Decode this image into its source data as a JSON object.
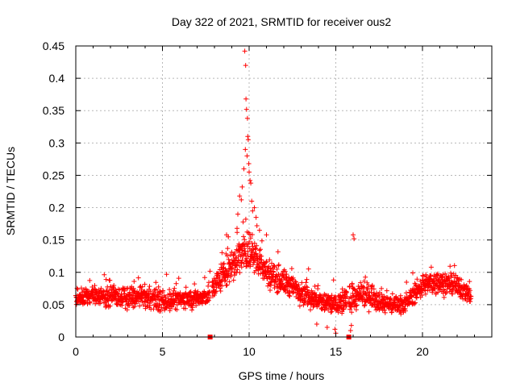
{
  "chart_data": {
    "type": "scatter",
    "title": "Day 322 of 2021, SRMTID for receiver ous2",
    "xlabel": "GPS time / hours",
    "ylabel": "SRMTID / TECUs",
    "xlim": [
      0,
      24
    ],
    "ylim": [
      0,
      0.45
    ],
    "x_ticks": [
      0,
      5,
      10,
      15,
      20
    ],
    "y_ticks": [
      0,
      0.05,
      0.1,
      0.15,
      0.2,
      0.25,
      0.3,
      0.35,
      0.4,
      0.45
    ],
    "x_tick_labels": [
      "0",
      "5",
      "10",
      "15",
      "20"
    ],
    "y_tick_labels": [
      "0",
      "0.05",
      "0.1",
      "0.15",
      "0.2",
      "0.25",
      "0.3",
      "0.35",
      "0.4",
      "0.45"
    ],
    "grid": true,
    "marker": "+",
    "color": "#ff0000",
    "series": [
      {
        "name": "SRMTID",
        "trend": [
          {
            "x": 0.0,
            "base": 0.06,
            "spread": 0.022
          },
          {
            "x": 1.0,
            "base": 0.065,
            "spread": 0.022
          },
          {
            "x": 2.0,
            "base": 0.063,
            "spread": 0.025
          },
          {
            "x": 3.0,
            "base": 0.06,
            "spread": 0.025
          },
          {
            "x": 4.0,
            "base": 0.062,
            "spread": 0.025
          },
          {
            "x": 5.0,
            "base": 0.055,
            "spread": 0.025
          },
          {
            "x": 6.0,
            "base": 0.058,
            "spread": 0.022
          },
          {
            "x": 7.0,
            "base": 0.06,
            "spread": 0.022
          },
          {
            "x": 7.6,
            "base": 0.062,
            "spread": 0.022
          },
          {
            "x": 8.0,
            "base": 0.08,
            "spread": 0.03
          },
          {
            "x": 8.5,
            "base": 0.095,
            "spread": 0.035
          },
          {
            "x": 9.0,
            "base": 0.11,
            "spread": 0.04
          },
          {
            "x": 9.5,
            "base": 0.13,
            "spread": 0.045
          },
          {
            "x": 10.0,
            "base": 0.13,
            "spread": 0.045
          },
          {
            "x": 10.5,
            "base": 0.12,
            "spread": 0.04
          },
          {
            "x": 11.0,
            "base": 0.1,
            "spread": 0.035
          },
          {
            "x": 12.0,
            "base": 0.085,
            "spread": 0.03
          },
          {
            "x": 13.0,
            "base": 0.07,
            "spread": 0.028
          },
          {
            "x": 14.0,
            "base": 0.055,
            "spread": 0.025
          },
          {
            "x": 15.0,
            "base": 0.05,
            "spread": 0.028
          },
          {
            "x": 16.0,
            "base": 0.06,
            "spread": 0.03
          },
          {
            "x": 17.0,
            "base": 0.065,
            "spread": 0.03
          },
          {
            "x": 18.0,
            "base": 0.05,
            "spread": 0.022
          },
          {
            "x": 19.0,
            "base": 0.052,
            "spread": 0.02
          },
          {
            "x": 20.0,
            "base": 0.08,
            "spread": 0.025
          },
          {
            "x": 21.0,
            "base": 0.085,
            "spread": 0.025
          },
          {
            "x": 22.0,
            "base": 0.078,
            "spread": 0.025
          },
          {
            "x": 22.8,
            "base": 0.065,
            "spread": 0.022
          }
        ],
        "point_count": 2000,
        "x_range": [
          0.0,
          22.8
        ],
        "gaps": [
          [
            7.75,
            7.85
          ],
          [
            15.65,
            15.75
          ]
        ],
        "peak_points": [
          {
            "x": 9.75,
            "y": 0.442
          },
          {
            "x": 9.8,
            "y": 0.42
          },
          {
            "x": 9.82,
            "y": 0.368
          },
          {
            "x": 9.85,
            "y": 0.352
          },
          {
            "x": 9.9,
            "y": 0.338
          },
          {
            "x": 9.92,
            "y": 0.31
          },
          {
            "x": 9.95,
            "y": 0.305
          },
          {
            "x": 9.78,
            "y": 0.29
          },
          {
            "x": 9.88,
            "y": 0.28
          },
          {
            "x": 9.98,
            "y": 0.268
          },
          {
            "x": 9.7,
            "y": 0.26
          },
          {
            "x": 10.0,
            "y": 0.255
          },
          {
            "x": 10.05,
            "y": 0.242
          },
          {
            "x": 10.1,
            "y": 0.238
          },
          {
            "x": 9.6,
            "y": 0.232
          },
          {
            "x": 9.45,
            "y": 0.218
          },
          {
            "x": 9.55,
            "y": 0.212
          },
          {
            "x": 10.15,
            "y": 0.21
          },
          {
            "x": 10.3,
            "y": 0.2
          },
          {
            "x": 10.2,
            "y": 0.195
          },
          {
            "x": 9.35,
            "y": 0.19
          },
          {
            "x": 10.4,
            "y": 0.185
          },
          {
            "x": 9.65,
            "y": 0.178
          },
          {
            "x": 10.45,
            "y": 0.172
          },
          {
            "x": 9.3,
            "y": 0.168
          },
          {
            "x": 8.7,
            "y": 0.158
          },
          {
            "x": 8.8,
            "y": 0.155
          },
          {
            "x": 11.0,
            "y": 0.158
          },
          {
            "x": 10.6,
            "y": 0.165
          },
          {
            "x": 16.0,
            "y": 0.158
          },
          {
            "x": 16.05,
            "y": 0.152
          }
        ],
        "dip_points": [
          {
            "x": 15.0,
            "y": 0.006
          },
          {
            "x": 14.95,
            "y": 0.012
          },
          {
            "x": 15.85,
            "y": 0.01
          },
          {
            "x": 15.9,
            "y": 0.018
          },
          {
            "x": 14.5,
            "y": 0.015
          },
          {
            "x": 13.9,
            "y": 0.02
          }
        ],
        "axis_markers": [
          {
            "x": 7.75,
            "y": 0
          },
          {
            "x": 15.75,
            "y": 0
          }
        ]
      }
    ]
  }
}
